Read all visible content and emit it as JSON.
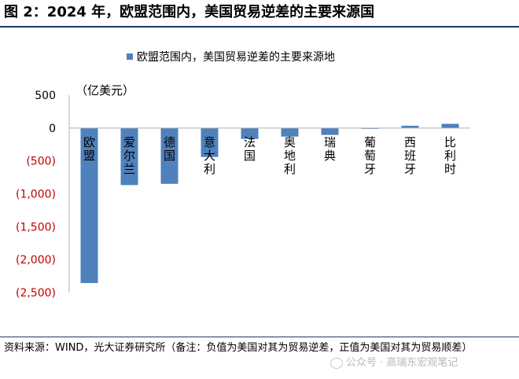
{
  "header": {
    "title": "图 2：2024 年，欧盟范围内，美国贸易逆差的主要来源国"
  },
  "note": {
    "text": "资料来源：WIND，光大证券研究所（备注：负值为美国对其为贸易逆差，正值为美国对其为贸易顺差）"
  },
  "watermark": {
    "text": "公众号 · 高瑞东宏观笔记"
  },
  "colors": {
    "bar": "#4f81bd",
    "negative_tick": "#c00000",
    "rule": "#1f3864"
  },
  "chart_data": {
    "type": "bar",
    "legend": "欧盟范围内，美国贸易逆差的主要来源地",
    "legend_position": "top-center",
    "unit_label": "（亿美元）",
    "categories": [
      "欧盟",
      "爱尔兰",
      "德国",
      "意大利",
      "法国",
      "奥地利",
      "瑞典",
      "葡萄牙",
      "西班牙",
      "比利时"
    ],
    "series": [
      {
        "name": "欧盟范围内，美国贸易逆差的主要来源地",
        "values": [
          -2356,
          -867,
          -848,
          -440,
          -165,
          -130,
          -105,
          -5,
          35,
          64
        ]
      }
    ],
    "ylim": [
      -2500,
      500
    ],
    "yticks": [
      500,
      0,
      -500,
      -1000,
      -1500,
      -2000,
      -2500
    ],
    "ytick_labels": [
      "500",
      "0",
      "(500)",
      "(1,000)",
      "(1,500)",
      "(2,000)",
      "(2,500)"
    ],
    "grid": false
  }
}
